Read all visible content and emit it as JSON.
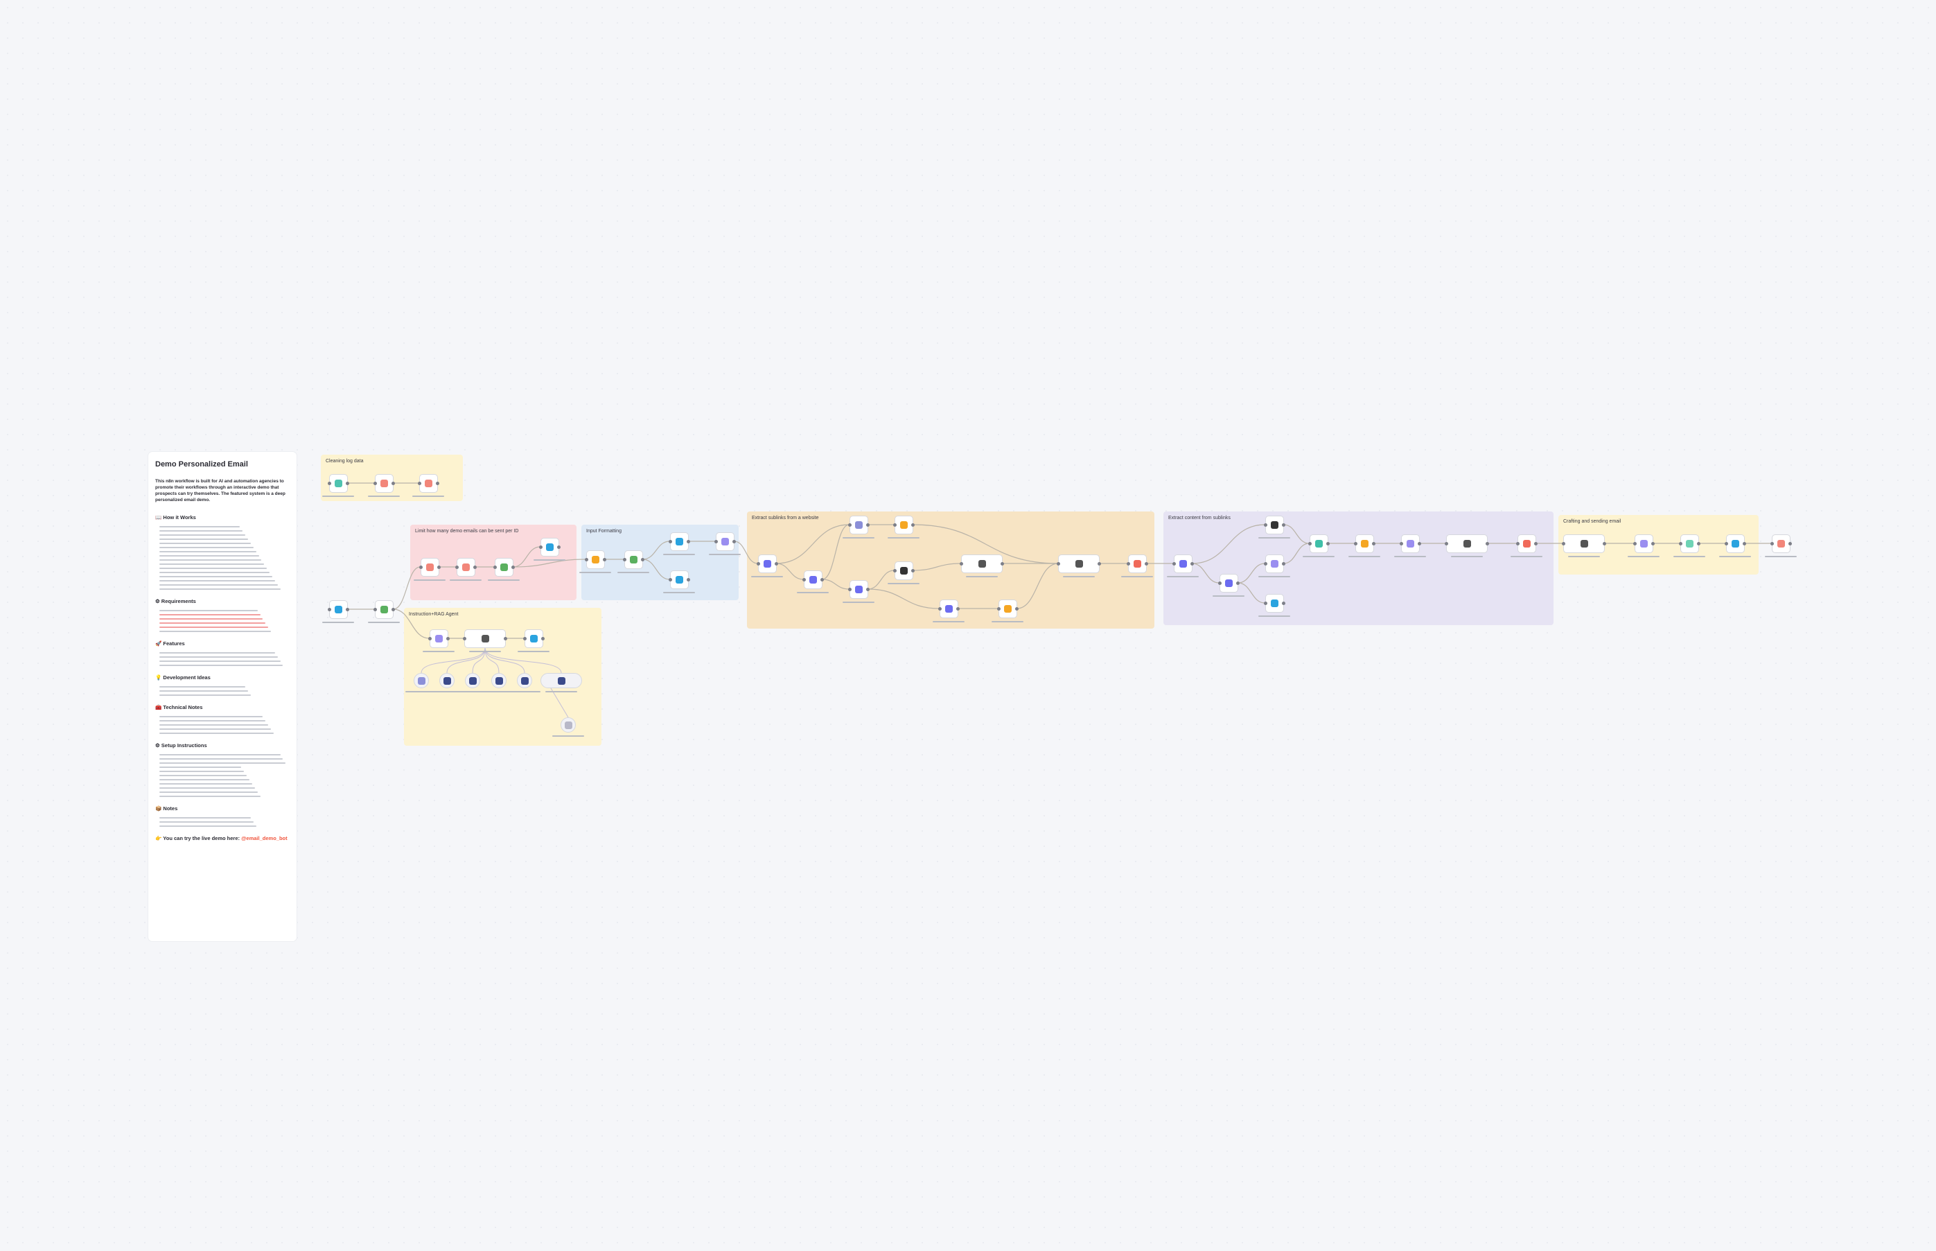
{
  "sticky": {
    "title": "Demo Personalized Email",
    "intro": "This n8n workflow is built for AI and automation agencies to promote their workflows through an interactive demo that prospects can try themselves. The featured system is a deep personalized email demo.",
    "sections": [
      {
        "heading": "📖 How it Works",
        "lines": 16
      },
      {
        "heading": "⚙ Requirements",
        "lines": 6
      },
      {
        "heading": "🚀 Features",
        "lines": 4
      },
      {
        "heading": "💡 Development Ideas",
        "lines": 3
      },
      {
        "heading": "🧰 Technical Notes",
        "lines": 5
      },
      {
        "heading": "⚙ Setup Instructions",
        "lines": 11
      },
      {
        "heading": "📦 Notes",
        "lines": 3
      }
    ],
    "cta_text": "👉 You can try the live demo here:",
    "cta_link": "@email_demo_bot"
  },
  "groups": [
    {
      "id": "cleaning",
      "title": "Cleaning log data",
      "color": "#fdf3d0"
    },
    {
      "id": "limit",
      "title": "Limit how many demo emails can be sent per ID",
      "color": "#fadadd"
    },
    {
      "id": "input",
      "title": "Input Formatting",
      "color": "#dde9f6"
    },
    {
      "id": "sublinks",
      "title": "Extract sublinks from a website",
      "color": "#f7e4c4"
    },
    {
      "id": "content",
      "title": "Extract content from sublinks",
      "color": "#e6e3f3"
    },
    {
      "id": "crafting",
      "title": "Crafting and sending email",
      "color": "#fdf3d0"
    },
    {
      "id": "rag",
      "title": "Instruction+RAG Agent",
      "color": "#fdf3d0"
    }
  ],
  "icon_colors": {
    "schedule-icon": "#4fc3b0",
    "database-icon": "#f2867a",
    "telegram-icon": "#2aa3df",
    "filter-icon": "#5bb05f",
    "code-icon": "#f5a623",
    "edit-icon": "#9a8ef0",
    "http-icon": "#6c6cf0",
    "file-icon": "#8b8fd8",
    "html-icon": "#333333",
    "ai-agent-icon": "#555555",
    "merge-icon": "#3fbfa8",
    "aggregate-icon": "#f06a5a",
    "gmail-icon": "#6fd3b5",
    "vector-store-icon": "#3b4a8a",
    "embeddings-icon": "#b8b8c8"
  }
}
